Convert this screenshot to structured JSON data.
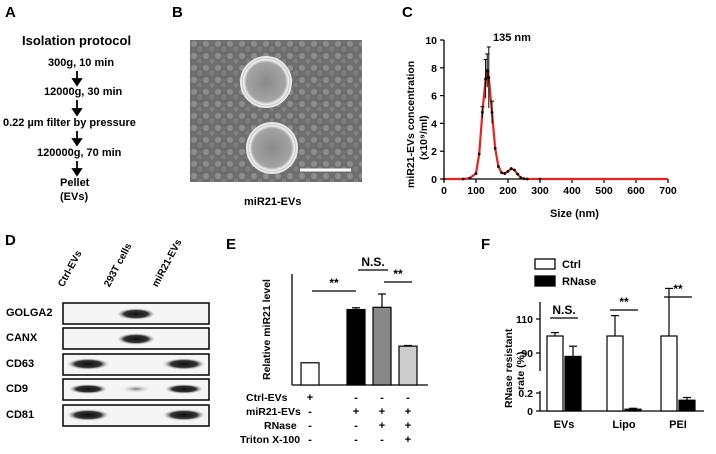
{
  "panels": [
    "A",
    "B",
    "C",
    "D",
    "E",
    "F"
  ],
  "panel_a": {
    "title": "Isolation protocol",
    "steps": [
      "300g, 10 min",
      "12000g, 30 min",
      "0.22 µm filter by pressure",
      "120000g, 70 min",
      "Pellet",
      "(EVs)"
    ]
  },
  "panel_b": {
    "caption": "miR21-EVs"
  },
  "panel_d": {
    "columns": [
      "Ctrl-EVs",
      "293T cells",
      "miR21-EVs"
    ],
    "rows": [
      "GOLGA2",
      "CANX",
      "CD63",
      "CD9",
      "CD81"
    ]
  },
  "chart_data": [
    {
      "panel": "C",
      "type": "line",
      "xlabel": "Size (nm)",
      "ylabel": "miR21-EVs concentration",
      "ylabel2": "(x10⁹/ml)",
      "annotation": "135 nm",
      "xlim": [
        0,
        700
      ],
      "ylim": [
        0,
        10
      ],
      "xticks": [
        0,
        100,
        200,
        300,
        400,
        500,
        600,
        700
      ],
      "yticks": [
        0,
        2,
        4,
        6,
        8,
        10
      ],
      "color": "#e8231f",
      "x": [
        0,
        60,
        80,
        100,
        110,
        120,
        130,
        135,
        140,
        150,
        160,
        170,
        180,
        190,
        200,
        210,
        220,
        230,
        240,
        250,
        260,
        300,
        400,
        500,
        600,
        700
      ],
      "y": [
        0,
        0,
        0.05,
        0.4,
        1.8,
        4.8,
        7.2,
        7.8,
        7.3,
        4.8,
        2.2,
        0.9,
        0.45,
        0.4,
        0.55,
        0.75,
        0.65,
        0.35,
        0.1,
        0.02,
        0,
        0,
        0,
        0,
        0,
        0
      ]
    },
    {
      "panel": "E",
      "type": "bar",
      "ylabel": "Relative miR21 level",
      "ylim": [
        0,
        5
      ],
      "values": [
        1.0,
        3.4,
        3.5,
        1.75
      ],
      "errors": [
        0,
        0.08,
        0.6,
        0.03
      ],
      "colors": [
        "#ffffff",
        "#000000",
        "#888888",
        "#cccccc"
      ],
      "condition_labels": [
        "Ctrl-EVs",
        "miR21-EVs",
        "RNase",
        "Triton X-100"
      ],
      "condition_table": [
        [
          "+",
          "-",
          "-",
          "-"
        ],
        [
          "-",
          "+",
          "+",
          "+"
        ],
        [
          "-",
          "-",
          "+",
          "+"
        ],
        [
          "-",
          "-",
          "-",
          "+"
        ]
      ],
      "significance": [
        {
          "label": "**",
          "from": 0,
          "to": 1
        },
        {
          "label": "N.S.",
          "from": 1,
          "to": 2
        },
        {
          "label": "**",
          "from": 2,
          "to": 3
        }
      ]
    },
    {
      "panel": "F",
      "type": "bar",
      "ylabel": "RNase resistant",
      "ylabel2": "rate (%)",
      "categories": [
        "EVs",
        "Lipo",
        "PEI"
      ],
      "yticks": [
        "0",
        "0.2",
        "90",
        "110"
      ],
      "series": [
        {
          "name": "Ctrl",
          "color": "#ffffff",
          "values": [
            100,
            100,
            100
          ],
          "errors": [
            2,
            12,
            28
          ]
        },
        {
          "name": "RNase",
          "color": "#000000",
          "values": [
            88,
            0.02,
            0.12
          ],
          "errors": [
            6,
            0.01,
            0.03
          ]
        }
      ],
      "significance": [
        "N.S.",
        "**",
        "**"
      ]
    }
  ]
}
